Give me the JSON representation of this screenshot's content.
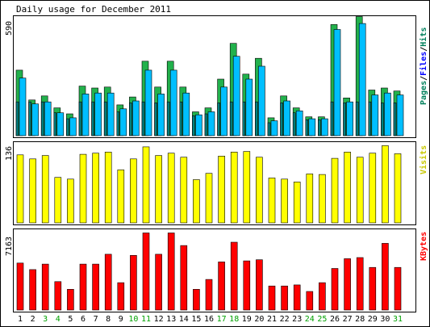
{
  "chart_data": {
    "type": "bar",
    "title": "Daily usage for December 2011",
    "categories": [
      "1",
      "2",
      "3",
      "4",
      "5",
      "6",
      "7",
      "8",
      "9",
      "10",
      "11",
      "12",
      "13",
      "14",
      "15",
      "16",
      "17",
      "18",
      "19",
      "20",
      "21",
      "22",
      "23",
      "24",
      "25",
      "26",
      "27",
      "28",
      "29",
      "30",
      "31"
    ],
    "weekend_days": [
      "3",
      "4",
      "10",
      "11",
      "17",
      "18",
      "24",
      "25",
      "31"
    ],
    "colors": {
      "pages": "#00805c",
      "files": "#0000ff",
      "hits": "#00805c",
      "hits_bar": "#22b14c",
      "files_bar": "#00bfff",
      "pages_bar": "#008080",
      "visits": "#ffff00",
      "visits_label": "#c8c800",
      "kbytes": "#ff0000",
      "kbytes_label": "#ff0000",
      "weekend": "#00a000",
      "weekday": "#000000"
    },
    "panels": [
      {
        "id": "hits",
        "max_label": "590",
        "ylim": [
          0,
          590
        ],
        "legend": [
          "Pages",
          "Files",
          "Hits"
        ],
        "series": [
          {
            "name": "Hits",
            "values": [
              330,
              180,
              200,
              140,
              110,
              250,
              240,
              245,
              155,
              195,
              375,
              245,
              375,
              245,
              120,
              140,
              285,
              465,
              310,
              390,
              90,
              200,
              140,
              95,
              95,
              560,
              190,
              600,
              230,
              240,
              225
            ]
          },
          {
            "name": "Files",
            "values": [
              290,
              160,
              170,
              115,
              90,
              210,
              215,
              215,
              135,
              175,
              330,
              210,
              330,
              215,
              105,
              120,
              245,
              400,
              285,
              350,
              75,
              175,
              125,
              85,
              85,
              535,
              170,
              565,
              205,
              215,
              205
            ]
          },
          {
            "name": "Pages",
            "values": [
              170,
              170,
              170,
              115,
              85,
              170,
              170,
              170,
              120,
              165,
              170,
              165,
              170,
              170,
              100,
              110,
              165,
              170,
              170,
              170,
              65,
              165,
              115,
              80,
              80,
              170,
              165,
              170,
              170,
              165,
              165
            ]
          }
        ]
      },
      {
        "id": "visits",
        "max_label": "136",
        "ylim": [
          0,
          136
        ],
        "legend": [
          "Visits"
        ],
        "series": [
          {
            "name": "Visits",
            "values": [
              118,
              111,
              117,
              79,
              76,
              119,
              121,
              123,
              92,
              111,
              132,
              117,
              121,
              114,
              75,
              86,
              116,
              123,
              124,
              114,
              78,
              76,
              71,
              85,
              84,
              112,
              123,
              114,
              121,
              134,
              120
            ]
          }
        ]
      },
      {
        "id": "kbytes",
        "max_label": "7163",
        "ylim": [
          0,
          7163
        ],
        "legend": [
          "KBytes"
        ],
        "series": [
          {
            "name": "KBytes",
            "values": [
              4300,
              3700,
              4200,
              2600,
              1900,
              4200,
              4200,
              5100,
              2500,
              5000,
              7050,
              5100,
              7050,
              5900,
              1900,
              2800,
              4400,
              6200,
              4500,
              4600,
              2200,
              2200,
              2300,
              1700,
              2500,
              3800,
              4700,
              4800,
              3900,
              6100,
              3900
            ]
          }
        ]
      }
    ]
  }
}
